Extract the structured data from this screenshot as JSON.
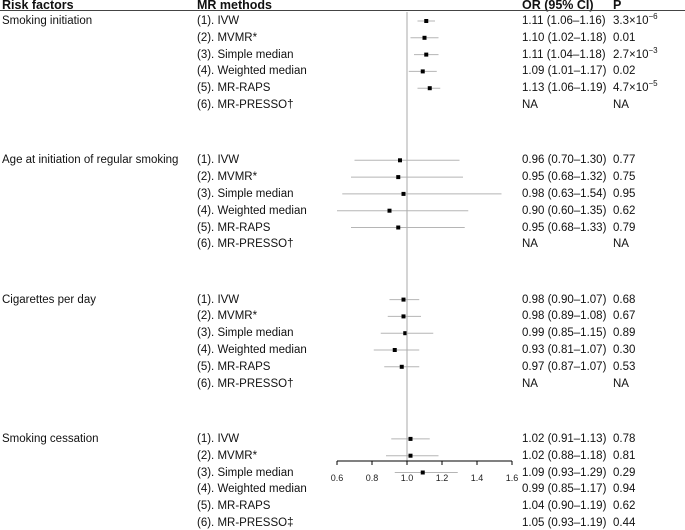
{
  "headers": {
    "risk_factors": "Risk factors",
    "mr_methods": "MR methods",
    "or_ci": "OR (95% CI)",
    "p": "P"
  },
  "chart_data": {
    "type": "forest",
    "xlabel": "",
    "xlim": [
      0.6,
      1.6
    ],
    "xticks": [
      "0.6",
      "0.8",
      "1.0",
      "1.2",
      "1.4",
      "1.6"
    ],
    "reference_line": 1.0,
    "groups": [
      {
        "risk_factor": "Smoking initiation",
        "rows": [
          {
            "method": "(1). IVW",
            "or": 1.11,
            "lo": 1.06,
            "hi": 1.16,
            "or_text": "1.11 (1.06–1.16)",
            "p_text": "3.3×10",
            "p_exp": "−6"
          },
          {
            "method": "(2). MVMR*",
            "or": 1.1,
            "lo": 1.02,
            "hi": 1.18,
            "or_text": "1.10 (1.02–1.18)",
            "p_text": "0.01",
            "p_exp": ""
          },
          {
            "method": "(3). Simple median",
            "or": 1.11,
            "lo": 1.04,
            "hi": 1.18,
            "or_text": "1.11 (1.04–1.18)",
            "p_text": "2.7×10",
            "p_exp": "−3"
          },
          {
            "method": "(4). Weighted median",
            "or": 1.09,
            "lo": 1.01,
            "hi": 1.17,
            "or_text": "1.09 (1.01–1.17)",
            "p_text": "0.02",
            "p_exp": ""
          },
          {
            "method": "(5). MR-RAPS",
            "or": 1.13,
            "lo": 1.06,
            "hi": 1.19,
            "or_text": "1.13 (1.06–1.19)",
            "p_text": "4.7×10",
            "p_exp": "−5"
          },
          {
            "method": "(6). MR-PRESSO†",
            "or": null,
            "lo": null,
            "hi": null,
            "or_text": "NA",
            "p_text": "NA",
            "p_exp": ""
          }
        ]
      },
      {
        "risk_factor": "Age at initiation of regular smoking",
        "rows": [
          {
            "method": "(1). IVW",
            "or": 0.96,
            "lo": 0.7,
            "hi": 1.3,
            "or_text": "0.96 (0.70–1.30)",
            "p_text": "0.77",
            "p_exp": ""
          },
          {
            "method": "(2). MVMR*",
            "or": 0.95,
            "lo": 0.68,
            "hi": 1.32,
            "or_text": "0.95 (0.68–1.32)",
            "p_text": "0.75",
            "p_exp": ""
          },
          {
            "method": "(3). Simple median",
            "or": 0.98,
            "lo": 0.63,
            "hi": 1.54,
            "or_text": "0.98 (0.63–1.54)",
            "p_text": "0.95",
            "p_exp": ""
          },
          {
            "method": "(4). Weighted median",
            "or": 0.9,
            "lo": 0.6,
            "hi": 1.35,
            "or_text": "0.90 (0.60–1.35)",
            "p_text": "0.62",
            "p_exp": ""
          },
          {
            "method": "(5). MR-RAPS",
            "or": 0.95,
            "lo": 0.68,
            "hi": 1.33,
            "or_text": "0.95 (0.68–1.33)",
            "p_text": "0.79",
            "p_exp": ""
          },
          {
            "method": "(6). MR-PRESSO†",
            "or": null,
            "lo": null,
            "hi": null,
            "or_text": "NA",
            "p_text": "NA",
            "p_exp": ""
          }
        ]
      },
      {
        "risk_factor": "Cigarettes per day",
        "rows": [
          {
            "method": "(1). IVW",
            "or": 0.98,
            "lo": 0.9,
            "hi": 1.07,
            "or_text": "0.98 (0.90–1.07)",
            "p_text": "0.68",
            "p_exp": ""
          },
          {
            "method": "(2). MVMR*",
            "or": 0.98,
            "lo": 0.89,
            "hi": 1.08,
            "or_text": "0.98 (0.89–1.08)",
            "p_text": "0.67",
            "p_exp": ""
          },
          {
            "method": "(3). Simple median",
            "or": 0.99,
            "lo": 0.85,
            "hi": 1.15,
            "or_text": "0.99 (0.85–1.15)",
            "p_text": "0.89",
            "p_exp": ""
          },
          {
            "method": "(4). Weighted median",
            "or": 0.93,
            "lo": 0.81,
            "hi": 1.07,
            "or_text": "0.93 (0.81–1.07)",
            "p_text": "0.30",
            "p_exp": ""
          },
          {
            "method": "(5). MR-RAPS",
            "or": 0.97,
            "lo": 0.87,
            "hi": 1.07,
            "or_text": "0.97 (0.87–1.07)",
            "p_text": "0.53",
            "p_exp": ""
          },
          {
            "method": "(6). MR-PRESSO†",
            "or": null,
            "lo": null,
            "hi": null,
            "or_text": "NA",
            "p_text": "NA",
            "p_exp": ""
          }
        ]
      },
      {
        "risk_factor": "Smoking cessation",
        "rows": [
          {
            "method": "(1). IVW",
            "or": 1.02,
            "lo": 0.91,
            "hi": 1.13,
            "or_text": "1.02 (0.91–1.13)",
            "p_text": "0.78",
            "p_exp": ""
          },
          {
            "method": "(2). MVMR*",
            "or": 1.02,
            "lo": 0.88,
            "hi": 1.18,
            "or_text": "1.02 (0.88–1.18)",
            "p_text": "0.81",
            "p_exp": ""
          },
          {
            "method": "(3). Simple median",
            "or": 1.09,
            "lo": 0.93,
            "hi": 1.29,
            "or_text": "1.09 (0.93–1.29)",
            "p_text": "0.29",
            "p_exp": ""
          },
          {
            "method": "(4). Weighted median",
            "or": 0.99,
            "lo": 0.85,
            "hi": 1.17,
            "or_text": "0.99 (0.85–1.17)",
            "p_text": "0.94",
            "p_exp": ""
          },
          {
            "method": "(5). MR-RAPS",
            "or": 1.04,
            "lo": 0.9,
            "hi": 1.19,
            "or_text": "1.04 (0.90–1.19)",
            "p_text": "0.62",
            "p_exp": ""
          },
          {
            "method": "(6). MR-PRESSO‡",
            "or": 1.05,
            "lo": 0.93,
            "hi": 1.19,
            "or_text": "1.05 (0.93–1.19)",
            "p_text": "0.44",
            "p_exp": ""
          }
        ]
      }
    ]
  }
}
